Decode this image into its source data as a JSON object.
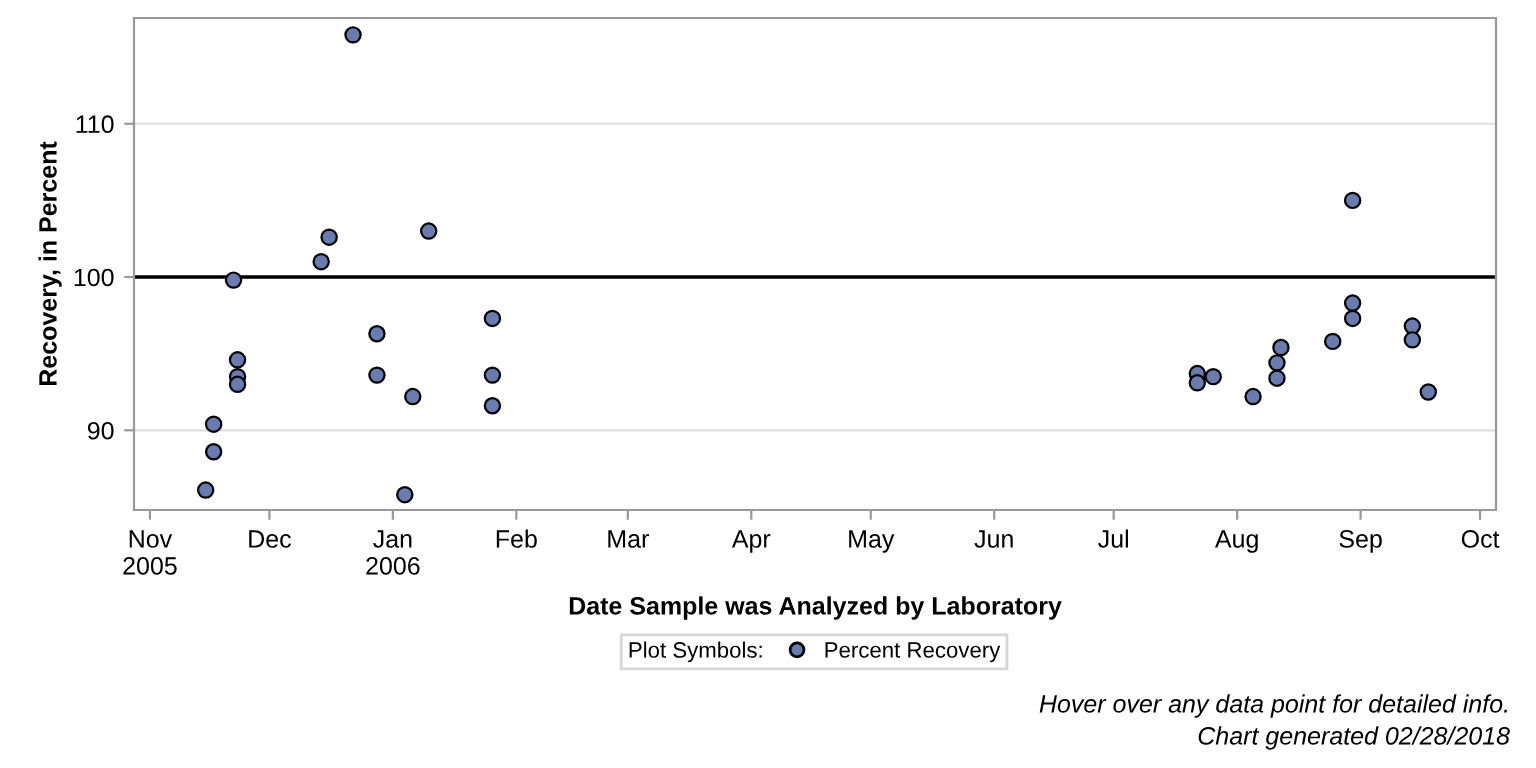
{
  "chart_data": {
    "type": "scatter",
    "xlabel": "Date Sample was Analyzed by Laboratory",
    "ylabel": "Recovery, in Percent",
    "legend_title": "Plot Symbols:",
    "legend": "bottom",
    "marker": "circle",
    "grid": "y",
    "x": [
      "2005-11-15",
      "2005-11-17",
      "2005-11-17",
      "2005-11-22",
      "2005-11-23",
      "2005-11-23",
      "2005-11-23",
      "2005-12-14",
      "2005-12-16",
      "2005-12-22",
      "2005-12-28",
      "2005-12-28",
      "2006-01-06",
      "2006-01-04",
      "2006-01-10",
      "2006-01-26",
      "2006-01-26",
      "2006-01-26",
      "2006-07-22",
      "2006-07-22",
      "2006-07-26",
      "2006-08-05",
      "2006-08-11",
      "2006-08-11",
      "2006-08-12",
      "2006-08-25",
      "2006-08-30",
      "2006-08-30",
      "2006-08-30",
      "2006-09-14",
      "2006-09-14",
      "2006-09-18"
    ],
    "series": [
      {
        "name": "Percent Recovery",
        "color": "#6a7bb0",
        "values": [
          86.1,
          88.6,
          90.4,
          99.8,
          94.6,
          93.5,
          93.0,
          101.0,
          102.6,
          115.8,
          96.3,
          93.6,
          92.2,
          85.8,
          103.0,
          97.3,
          93.6,
          91.6,
          93.7,
          93.1,
          93.5,
          92.2,
          93.4,
          94.4,
          95.4,
          95.8,
          97.3,
          98.3,
          105.0,
          96.8,
          95.9,
          92.5
        ]
      }
    ],
    "xlim": [
      "2005-10-28",
      "2006-10-05"
    ],
    "xticks": [
      {
        "value": "2005-11-01",
        "label": "Nov\n2005"
      },
      {
        "value": "2005-12-01",
        "label": "Dec"
      },
      {
        "value": "2006-01-01",
        "label": "Jan\n2006"
      },
      {
        "value": "2006-02-01",
        "label": "Feb"
      },
      {
        "value": "2006-03-01",
        "label": "Mar"
      },
      {
        "value": "2006-04-01",
        "label": "Apr"
      },
      {
        "value": "2006-05-01",
        "label": "May"
      },
      {
        "value": "2006-06-01",
        "label": "Jun"
      },
      {
        "value": "2006-07-01",
        "label": "Jul"
      },
      {
        "value": "2006-08-01",
        "label": "Aug"
      },
      {
        "value": "2006-09-01",
        "label": "Sep"
      },
      {
        "value": "2006-10-01",
        "label": "Oct"
      }
    ],
    "ylim": [
      84.8,
      116.9
    ],
    "yticks": [
      90,
      100,
      110
    ],
    "ref_lines": [
      {
        "axis": "y",
        "value": 100,
        "label": null,
        "color": "#000000"
      }
    ],
    "annotations": [
      "Hover over any data point for detailed info.",
      "Chart generated 02/28/2018"
    ]
  }
}
